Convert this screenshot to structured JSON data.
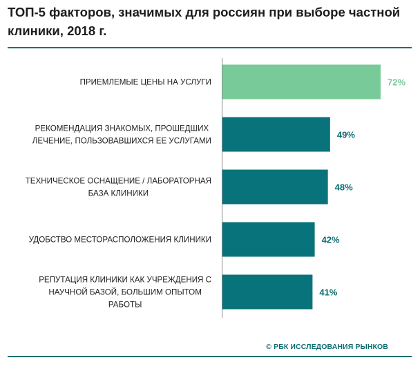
{
  "header": {
    "title": "ТОП-5 факторов, значимых для россиян при выборе частной клиники, 2018 г."
  },
  "footer": {
    "source": "© РБК ИССЛЕДОВАНИЯ РЫНКОВ"
  },
  "colors": {
    "highlight_bar": "#78cb98",
    "highlight_label": "#78cb98",
    "bar": "#08737a",
    "value_label": "#0b6c70",
    "rule": "#1d6e6f",
    "axis": "#888888",
    "category_text": "#222222"
  },
  "chart_data": {
    "type": "bar",
    "orientation": "horizontal",
    "title": "ТОП-5 факторов, значимых для россиян при выборе частной клиники, 2018 г.",
    "xlabel": "",
    "ylabel": "",
    "xlim": [
      0,
      72
    ],
    "grid": false,
    "legend": "none",
    "categories": [
      [
        "ПРИЕМЛЕМЫЕ ЦЕНЫ НА УСЛУГИ"
      ],
      [
        "РЕКОМЕНДАЦИЯ ЗНАКОМЫХ, ПРОШЕДШИХ",
        "ЛЕЧЕНИЕ, ПОЛЬЗОВАВШИХСЯ ЕЕ УСЛУГАМИ"
      ],
      [
        "ТЕХНИЧЕСКОЕ ОСНАЩЕНИЕ / ЛАБОРАТОРНАЯ",
        "БАЗА КЛИНИКИ"
      ],
      [
        "УДОБСТВО МЕСТОРАСПОЛОЖЕНИЯ КЛИНИКИ"
      ],
      [
        "РЕПУТАЦИЯ КЛИНИКИ КАК УЧРЕЖДЕНИЯ С",
        "НАУЧНОЙ БАЗОЙ, БОЛЬШИМ ОПЫТОМ",
        "РАБОТЫ"
      ]
    ],
    "values": [
      72,
      49,
      48,
      42,
      41
    ],
    "value_labels": [
      "72%",
      "49%",
      "48%",
      "42%",
      "41%"
    ],
    "highlight_index": 0,
    "unit": "%"
  }
}
